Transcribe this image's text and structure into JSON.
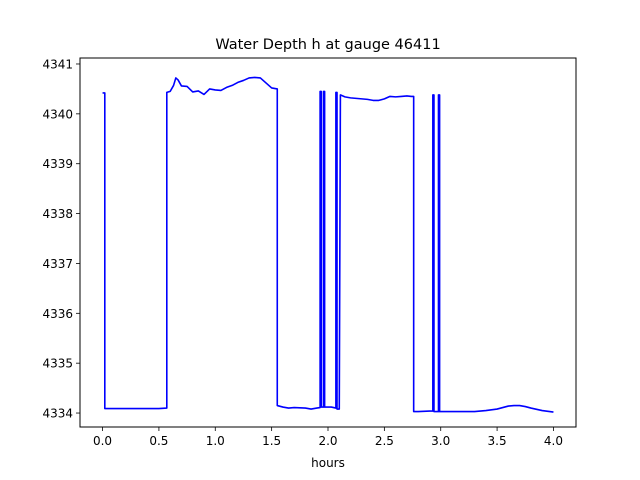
{
  "chart_data": {
    "type": "line",
    "title": "Water Depth h at gauge 46411",
    "xlabel": "hours",
    "ylabel": "",
    "xlim": [
      -0.2,
      4.2
    ],
    "ylim": [
      4333.72,
      4341.12
    ],
    "x_ticks": [
      {
        "value": 0.0,
        "label": "0.0"
      },
      {
        "value": 0.5,
        "label": "0.5"
      },
      {
        "value": 1.0,
        "label": "1.0"
      },
      {
        "value": 1.5,
        "label": "1.5"
      },
      {
        "value": 2.0,
        "label": "2.0"
      },
      {
        "value": 2.5,
        "label": "2.5"
      },
      {
        "value": 3.0,
        "label": "3.0"
      },
      {
        "value": 3.5,
        "label": "3.5"
      },
      {
        "value": 4.0,
        "label": "4.0"
      }
    ],
    "y_ticks": [
      {
        "value": 4334,
        "label": "4334"
      },
      {
        "value": 4335,
        "label": "4335"
      },
      {
        "value": 4336,
        "label": "4336"
      },
      {
        "value": 4337,
        "label": "4337"
      },
      {
        "value": 4338,
        "label": "4338"
      },
      {
        "value": 4339,
        "label": "4339"
      },
      {
        "value": 4340,
        "label": "4340"
      },
      {
        "value": 4341,
        "label": "4341"
      }
    ],
    "grid": false,
    "series_color": "#0000ff",
    "series": [
      {
        "x": [
          0.0,
          0.02,
          0.02,
          0.3,
          0.5,
          0.57,
          0.57,
          0.6,
          0.63,
          0.65,
          0.67,
          0.7,
          0.75,
          0.8,
          0.85,
          0.9,
          0.95,
          1.0,
          1.05,
          1.1,
          1.15,
          1.2,
          1.25,
          1.3,
          1.35,
          1.4,
          1.45,
          1.5,
          1.55,
          1.55,
          1.6,
          1.65,
          1.7,
          1.8,
          1.85,
          1.9,
          1.93,
          1.93,
          1.94,
          1.94,
          1.96,
          1.96,
          1.97,
          1.97,
          1.99,
          2.03,
          2.07,
          2.07,
          2.08,
          2.08,
          2.1,
          2.11,
          2.11,
          2.15,
          2.2,
          2.25,
          2.3,
          2.35,
          2.4,
          2.45,
          2.5,
          2.55,
          2.6,
          2.65,
          2.7,
          2.74,
          2.76,
          2.76,
          2.8,
          2.9,
          2.93,
          2.93,
          2.94,
          2.94,
          2.98,
          2.98,
          2.99,
          2.99,
          3.02,
          3.02,
          3.2,
          3.3,
          3.4,
          3.5,
          3.55,
          3.6,
          3.65,
          3.7,
          3.75,
          3.8,
          3.9,
          4.0
        ],
        "y": [
          4340.42,
          4340.42,
          4334.09,
          4334.09,
          4334.09,
          4334.1,
          4340.43,
          4340.45,
          4340.57,
          4340.72,
          4340.68,
          4340.56,
          4340.55,
          4340.44,
          4340.46,
          4340.39,
          4340.5,
          4340.48,
          4340.47,
          4340.53,
          4340.57,
          4340.63,
          4340.67,
          4340.72,
          4340.73,
          4340.72,
          4340.62,
          4340.52,
          4340.5,
          4334.15,
          4334.12,
          4334.1,
          4334.11,
          4334.1,
          4334.08,
          4334.1,
          4334.11,
          4340.45,
          4340.45,
          4334.12,
          4334.12,
          4340.45,
          4340.45,
          4334.12,
          4334.12,
          4334.12,
          4334.1,
          4340.43,
          4340.43,
          4334.08,
          4334.08,
          4340.38,
          4340.38,
          4340.34,
          4340.32,
          4340.31,
          4340.3,
          4340.29,
          4340.27,
          4340.27,
          4340.3,
          4340.35,
          4340.34,
          4340.35,
          4340.36,
          4340.35,
          4340.35,
          4334.03,
          4334.03,
          4334.04,
          4334.04,
          4340.38,
          4340.38,
          4334.03,
          4334.03,
          4340.38,
          4340.38,
          4334.03,
          4334.03,
          4334.03,
          4334.03,
          4334.03,
          4334.05,
          4334.08,
          4334.11,
          4334.14,
          4334.15,
          4334.15,
          4334.13,
          4334.1,
          4334.05,
          4334.02
        ]
      }
    ]
  }
}
